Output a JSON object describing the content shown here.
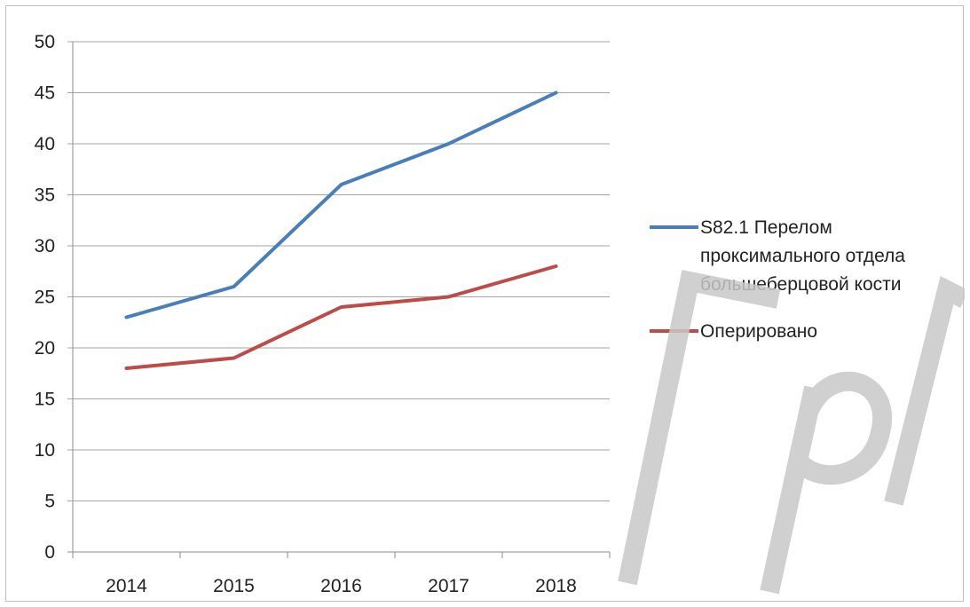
{
  "chart_data": {
    "type": "line",
    "title": "",
    "xlabel": "",
    "ylabel": "",
    "categories": [
      "2014",
      "2015",
      "2016",
      "2017",
      "2018"
    ],
    "ylim": [
      0,
      50
    ],
    "yticks": [
      "0",
      "5",
      "10",
      "15",
      "20",
      "25",
      "30",
      "35",
      "40",
      "45",
      "50"
    ],
    "grid": true,
    "legend_position": "right",
    "series": [
      {
        "name": "S82.1 Перелом проксимального отдела большеберцовой кости",
        "legend_lines": [
          "S82.1 Перелом",
          "проксимального отдела",
          "большеберцовой кости"
        ],
        "values": [
          23,
          26,
          36,
          40,
          45
        ],
        "color": "#4a7ebb"
      },
      {
        "name": "Оперировано",
        "legend_lines": [
          "Оперировано"
        ],
        "values": [
          18,
          19,
          24,
          25,
          28
        ],
        "color": "#be4b48"
      }
    ]
  },
  "watermark": {
    "text": "ГрГМУ",
    "color": "#c8c8c8"
  }
}
